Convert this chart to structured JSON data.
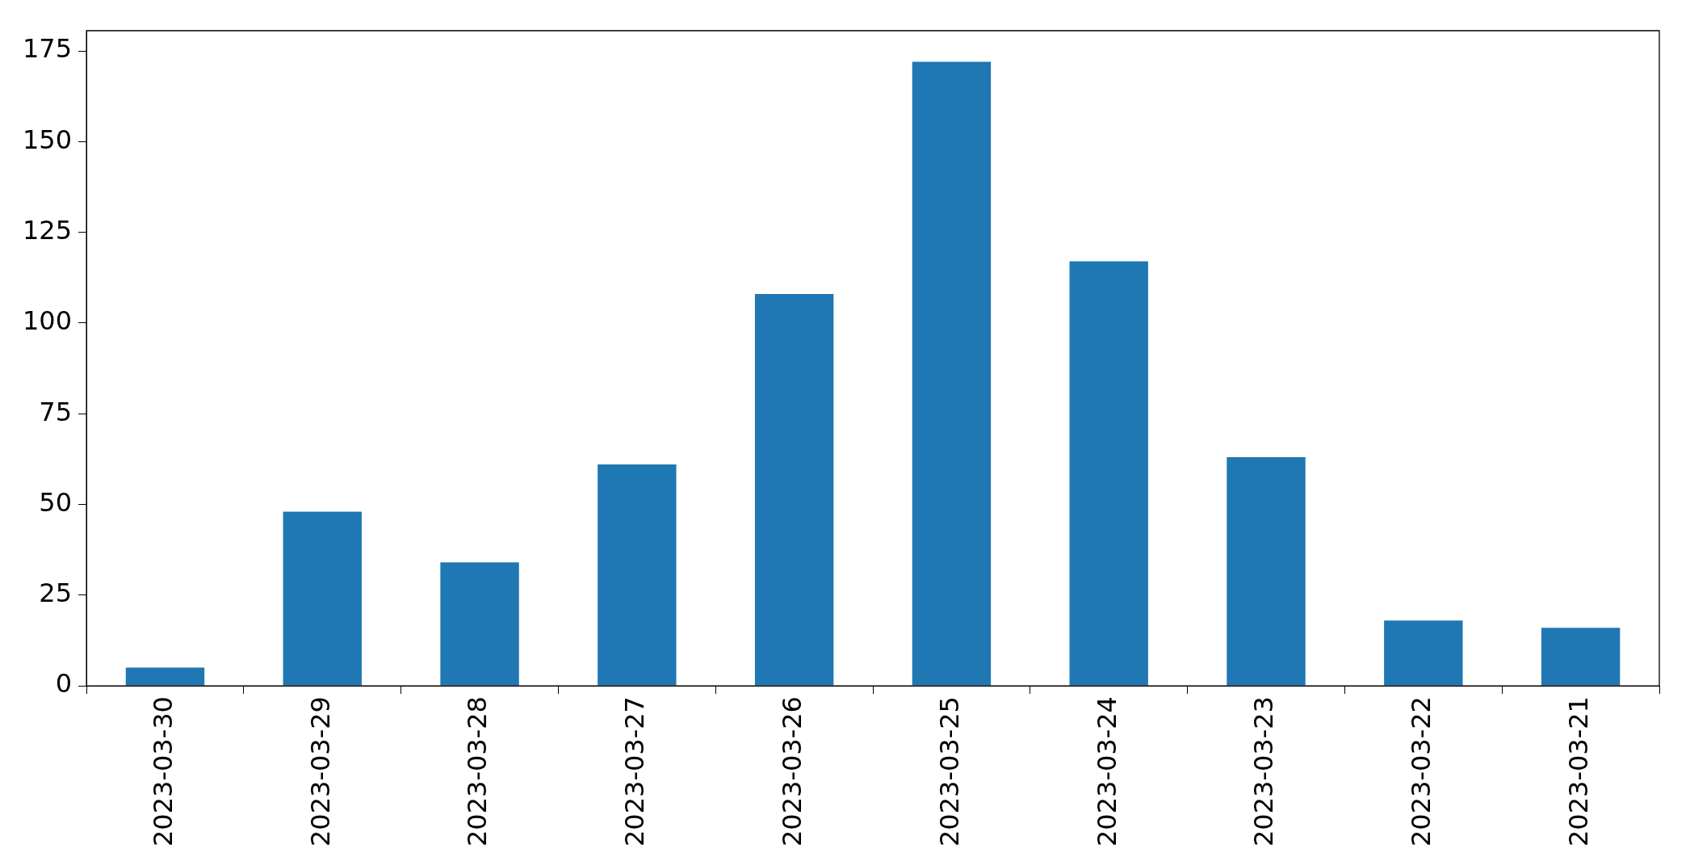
{
  "chart_data": {
    "type": "bar",
    "categories": [
      "2023-03-30",
      "2023-03-29",
      "2023-03-28",
      "2023-03-27",
      "2023-03-26",
      "2023-03-25",
      "2023-03-24",
      "2023-03-23",
      "2023-03-22",
      "2023-03-21"
    ],
    "values": [
      5,
      48,
      34,
      61,
      108,
      172,
      117,
      63,
      18,
      16
    ],
    "color": "#1f77b4",
    "ylim": [
      0,
      180.6
    ],
    "yticks": [
      0,
      25,
      50,
      75,
      100,
      125,
      150,
      175
    ],
    "grid": false,
    "legend": false
  }
}
